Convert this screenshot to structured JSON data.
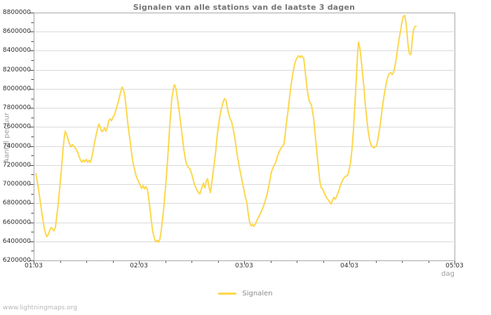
{
  "title": "Signalen van alle stations van de laatste 3 dagen",
  "watermark": "www.lightningmaps.org",
  "legend": {
    "label": "Signalen"
  },
  "colors": {
    "line": "#FDD74C",
    "grid": "#D9D9D9",
    "plot_border": "#A8A8A8",
    "tick": "#4A4A4A",
    "title_text": "#757575",
    "axis_tick_text": "#2E2E2E",
    "axis_name_text": "#9B9B9B",
    "legend_text": "#8C8C8C",
    "watermark_text": "#B8B8B8"
  },
  "chart_data": {
    "type": "line",
    "title": "Signalen van alle stations van de laatste 3 dagen",
    "xlabel": "dag",
    "ylabel": "Aantal per uur",
    "x_unit": "days since 01.03 00:00",
    "xlim": [
      0,
      4
    ],
    "ylim": [
      6200000,
      8800000
    ],
    "ytick_step": 200000,
    "minor_ytick_step": 100000,
    "minor_xtick_step_days": 0.25,
    "grid": "horizontal",
    "legend_position": "bottom-center",
    "xticks": [
      {
        "d": 0,
        "label": "01.03"
      },
      {
        "d": 1,
        "label": "02.03"
      },
      {
        "d": 2,
        "label": "03.03"
      },
      {
        "d": 3,
        "label": "04.03"
      },
      {
        "d": 4,
        "label": "05.03"
      }
    ],
    "series": [
      {
        "name": "Signalen",
        "color": "#FDD74C",
        "points": [
          [
            0.02,
            7110000
          ],
          [
            0.04,
            6990000
          ],
          [
            0.06,
            6840000
          ],
          [
            0.08,
            6680000
          ],
          [
            0.1,
            6540000
          ],
          [
            0.113,
            6480000
          ],
          [
            0.127,
            6450000
          ],
          [
            0.14,
            6475000
          ],
          [
            0.153,
            6515000
          ],
          [
            0.167,
            6545000
          ],
          [
            0.18,
            6530000
          ],
          [
            0.193,
            6510000
          ],
          [
            0.207,
            6545000
          ],
          [
            0.227,
            6735000
          ],
          [
            0.247,
            6950000
          ],
          [
            0.267,
            7200000
          ],
          [
            0.28,
            7380000
          ],
          [
            0.293,
            7505000
          ],
          [
            0.3,
            7555000
          ],
          [
            0.313,
            7520000
          ],
          [
            0.333,
            7445000
          ],
          [
            0.353,
            7390000
          ],
          [
            0.367,
            7415000
          ],
          [
            0.38,
            7400000
          ],
          [
            0.393,
            7385000
          ],
          [
            0.407,
            7360000
          ],
          [
            0.42,
            7330000
          ],
          [
            0.433,
            7285000
          ],
          [
            0.447,
            7250000
          ],
          [
            0.46,
            7230000
          ],
          [
            0.473,
            7255000
          ],
          [
            0.487,
            7235000
          ],
          [
            0.5,
            7260000
          ],
          [
            0.513,
            7230000
          ],
          [
            0.527,
            7250000
          ],
          [
            0.54,
            7228000
          ],
          [
            0.553,
            7280000
          ],
          [
            0.573,
            7400000
          ],
          [
            0.593,
            7510000
          ],
          [
            0.613,
            7605000
          ],
          [
            0.62,
            7630000
          ],
          [
            0.633,
            7600000
          ],
          [
            0.647,
            7550000
          ],
          [
            0.66,
            7560000
          ],
          [
            0.673,
            7590000
          ],
          [
            0.687,
            7555000
          ],
          [
            0.7,
            7590000
          ],
          [
            0.713,
            7660000
          ],
          [
            0.727,
            7685000
          ],
          [
            0.74,
            7665000
          ],
          [
            0.753,
            7700000
          ],
          [
            0.767,
            7725000
          ],
          [
            0.787,
            7800000
          ],
          [
            0.807,
            7875000
          ],
          [
            0.82,
            7940000
          ],
          [
            0.84,
            8020000
          ],
          [
            0.853,
            7995000
          ],
          [
            0.867,
            7920000
          ],
          [
            0.88,
            7790000
          ],
          [
            0.893,
            7660000
          ],
          [
            0.907,
            7525000
          ],
          [
            0.92,
            7430000
          ],
          [
            0.933,
            7300000
          ],
          [
            0.947,
            7210000
          ],
          [
            0.96,
            7150000
          ],
          [
            0.973,
            7090000
          ],
          [
            0.987,
            7050000
          ],
          [
            1.0,
            7020000
          ],
          [
            1.013,
            6990000
          ],
          [
            1.027,
            6955000
          ],
          [
            1.04,
            6985000
          ],
          [
            1.053,
            6950000
          ],
          [
            1.067,
            6975000
          ],
          [
            1.08,
            6950000
          ],
          [
            1.093,
            6860000
          ],
          [
            1.107,
            6725000
          ],
          [
            1.12,
            6600000
          ],
          [
            1.133,
            6500000
          ],
          [
            1.147,
            6430000
          ],
          [
            1.16,
            6395000
          ],
          [
            1.173,
            6412000
          ],
          [
            1.187,
            6390000
          ],
          [
            1.2,
            6425000
          ],
          [
            1.213,
            6520000
          ],
          [
            1.233,
            6715000
          ],
          [
            1.253,
            6955000
          ],
          [
            1.273,
            7250000
          ],
          [
            1.293,
            7600000
          ],
          [
            1.313,
            7895000
          ],
          [
            1.333,
            8030000
          ],
          [
            1.34,
            8042000
          ],
          [
            1.353,
            8000000
          ],
          [
            1.367,
            7890000
          ],
          [
            1.387,
            7730000
          ],
          [
            1.407,
            7550000
          ],
          [
            1.427,
            7360000
          ],
          [
            1.447,
            7230000
          ],
          [
            1.467,
            7180000
          ],
          [
            1.487,
            7158000
          ],
          [
            1.507,
            7090000
          ],
          [
            1.527,
            7000000
          ],
          [
            1.547,
            6950000
          ],
          [
            1.567,
            6912000
          ],
          [
            1.58,
            6898000
          ],
          [
            1.6,
            6968000
          ],
          [
            1.613,
            7010000
          ],
          [
            1.627,
            6962000
          ],
          [
            1.64,
            7030000
          ],
          [
            1.653,
            7058000
          ],
          [
            1.667,
            6965000
          ],
          [
            1.68,
            6912000
          ],
          [
            1.7,
            7075000
          ],
          [
            1.727,
            7315000
          ],
          [
            1.747,
            7540000
          ],
          [
            1.767,
            7703000
          ],
          [
            1.793,
            7832000
          ],
          [
            1.813,
            7898000
          ],
          [
            1.827,
            7880000
          ],
          [
            1.847,
            7762000
          ],
          [
            1.867,
            7683000
          ],
          [
            1.88,
            7660000
          ],
          [
            1.893,
            7600000
          ],
          [
            1.913,
            7480000
          ],
          [
            1.933,
            7320000
          ],
          [
            1.96,
            7150000
          ],
          [
            1.98,
            7042000
          ],
          [
            2.0,
            6930000
          ],
          [
            2.013,
            6862000
          ],
          [
            2.027,
            6800000
          ],
          [
            2.04,
            6685000
          ],
          [
            2.053,
            6600000
          ],
          [
            2.067,
            6562000
          ],
          [
            2.08,
            6578000
          ],
          [
            2.093,
            6558000
          ],
          [
            2.107,
            6580000
          ],
          [
            2.12,
            6615000
          ],
          [
            2.14,
            6660000
          ],
          [
            2.16,
            6705000
          ],
          [
            2.18,
            6755000
          ],
          [
            2.2,
            6822000
          ],
          [
            2.22,
            6900000
          ],
          [
            2.24,
            7010000
          ],
          [
            2.26,
            7130000
          ],
          [
            2.28,
            7185000
          ],
          [
            2.3,
            7225000
          ],
          [
            2.32,
            7305000
          ],
          [
            2.34,
            7355000
          ],
          [
            2.36,
            7392000
          ],
          [
            2.38,
            7420000
          ],
          [
            2.4,
            7620000
          ],
          [
            2.42,
            7790000
          ],
          [
            2.44,
            7985000
          ],
          [
            2.46,
            8140000
          ],
          [
            2.48,
            8262000
          ],
          [
            2.5,
            8322000
          ],
          [
            2.52,
            8348000
          ],
          [
            2.533,
            8330000
          ],
          [
            2.547,
            8347000
          ],
          [
            2.567,
            8318000
          ],
          [
            2.58,
            8190000
          ],
          [
            2.6,
            7990000
          ],
          [
            2.62,
            7868000
          ],
          [
            2.64,
            7830000
          ],
          [
            2.66,
            7700000
          ],
          [
            2.68,
            7470000
          ],
          [
            2.7,
            7240000
          ],
          [
            2.72,
            7030000
          ],
          [
            2.733,
            6962000
          ],
          [
            2.747,
            6952000
          ],
          [
            2.767,
            6892000
          ],
          [
            2.787,
            6852000
          ],
          [
            2.807,
            6822000
          ],
          [
            2.827,
            6792000
          ],
          [
            2.84,
            6830000
          ],
          [
            2.853,
            6862000
          ],
          [
            2.867,
            6842000
          ],
          [
            2.88,
            6872000
          ],
          [
            2.9,
            6930000
          ],
          [
            2.92,
            7000000
          ],
          [
            2.94,
            7052000
          ],
          [
            2.96,
            7080000
          ],
          [
            2.98,
            7088000
          ],
          [
            2.993,
            7122000
          ],
          [
            3.013,
            7230000
          ],
          [
            3.027,
            7390000
          ],
          [
            3.04,
            7580000
          ],
          [
            3.053,
            7830000
          ],
          [
            3.067,
            8120000
          ],
          [
            3.08,
            8400000
          ],
          [
            3.087,
            8490000
          ],
          [
            3.1,
            8430000
          ],
          [
            3.113,
            8300000
          ],
          [
            3.127,
            8150000
          ],
          [
            3.14,
            8000000
          ],
          [
            3.153,
            7820000
          ],
          [
            3.167,
            7680000
          ],
          [
            3.18,
            7552000
          ],
          [
            3.193,
            7462000
          ],
          [
            3.207,
            7412000
          ],
          [
            3.22,
            7392000
          ],
          [
            3.233,
            7380000
          ],
          [
            3.247,
            7395000
          ],
          [
            3.26,
            7402000
          ],
          [
            3.273,
            7480000
          ],
          [
            3.293,
            7620000
          ],
          [
            3.313,
            7800000
          ],
          [
            3.333,
            7950000
          ],
          [
            3.353,
            8070000
          ],
          [
            3.367,
            8130000
          ],
          [
            3.38,
            8160000
          ],
          [
            3.393,
            8172000
          ],
          [
            3.407,
            8150000
          ],
          [
            3.42,
            8172000
          ],
          [
            3.433,
            8230000
          ],
          [
            3.447,
            8320000
          ],
          [
            3.46,
            8430000
          ],
          [
            3.473,
            8520000
          ],
          [
            3.487,
            8610000
          ],
          [
            3.5,
            8700000
          ],
          [
            3.513,
            8758000
          ],
          [
            3.527,
            8770000
          ],
          [
            3.54,
            8680000
          ],
          [
            3.547,
            8600000
          ],
          [
            3.553,
            8520000
          ],
          [
            3.56,
            8442000
          ],
          [
            3.567,
            8392000
          ],
          [
            3.573,
            8365000
          ],
          [
            3.58,
            8360000
          ],
          [
            3.587,
            8372000
          ],
          [
            3.593,
            8450000
          ],
          [
            3.6,
            8540000
          ],
          [
            3.607,
            8600000
          ],
          [
            3.613,
            8630000
          ],
          [
            3.62,
            8648000
          ],
          [
            3.633,
            8658000
          ]
        ]
      }
    ]
  }
}
